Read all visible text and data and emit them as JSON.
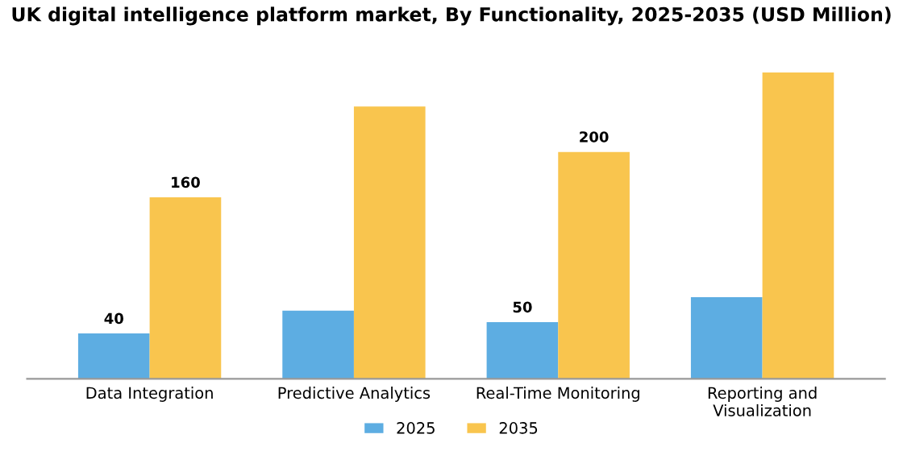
{
  "chart_data": {
    "type": "bar",
    "title": "UK digital intelligence platform market, By Functionality, 2025-2035 (USD Million)",
    "categories": [
      "Data Integration",
      "Predictive Analytics",
      "Real-Time Monitoring",
      "Reporting and\nVisualization"
    ],
    "series": [
      {
        "name": "2025",
        "color": "#5dade2",
        "values": [
          40,
          60,
          50,
          72
        ],
        "value_labels": [
          "40",
          null,
          "50",
          null
        ]
      },
      {
        "name": "2035",
        "color": "#f9c54e",
        "values": [
          160,
          240,
          200,
          270
        ],
        "value_labels": [
          "160",
          null,
          "200",
          null
        ]
      }
    ],
    "legend": "bottom",
    "grid": false
  }
}
